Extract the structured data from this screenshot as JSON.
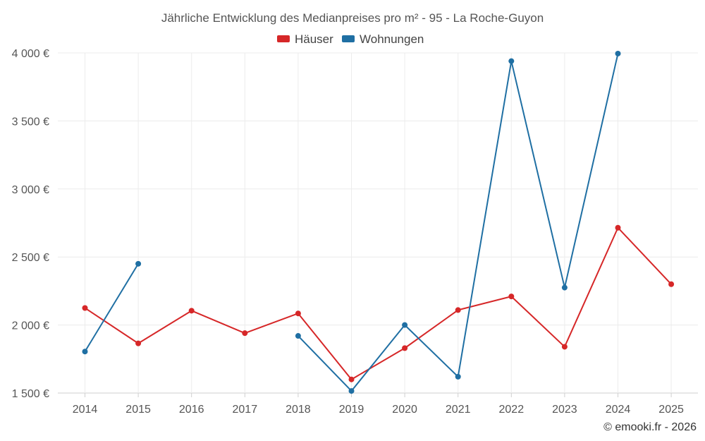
{
  "chart_data": {
    "type": "line",
    "title": "Jährliche Entwicklung des Medianpreises pro m² - 95 - La Roche-Guyon",
    "categories": [
      "2014",
      "2015",
      "2016",
      "2017",
      "2018",
      "2019",
      "2020",
      "2021",
      "2022",
      "2023",
      "2024",
      "2025"
    ],
    "ylim": [
      1500,
      4000
    ],
    "yticks": [
      1500,
      2000,
      2500,
      3000,
      3500,
      4000
    ],
    "ytick_labels": [
      "1 500 €",
      "2 000 €",
      "2 500 €",
      "3 000 €",
      "3 500 €",
      "4 000 €"
    ],
    "grid": true,
    "legend_position": "top-center",
    "series": [
      {
        "name": "Häuser",
        "color": "#d62728",
        "values": [
          2125,
          1865,
          2105,
          1940,
          2085,
          1600,
          1830,
          2110,
          2210,
          1840,
          2715,
          2300
        ]
      },
      {
        "name": "Wohnungen",
        "color": "#1f6fa3",
        "values": [
          1805,
          2450,
          null,
          null,
          1920,
          1515,
          2000,
          1620,
          3940,
          2275,
          3995,
          null
        ]
      }
    ]
  },
  "credit": "© emooki.fr - 2026"
}
